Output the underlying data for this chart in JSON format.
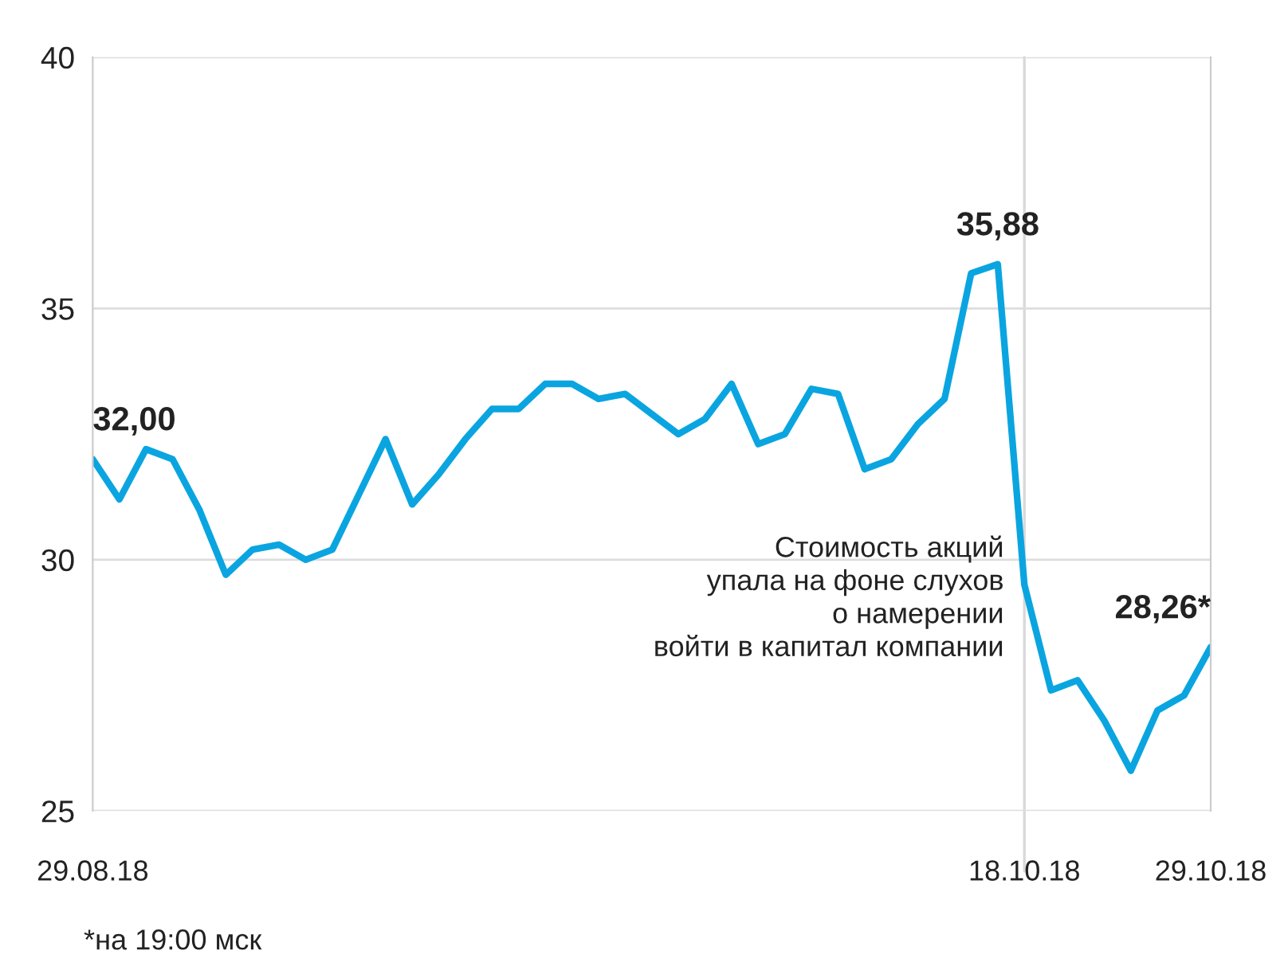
{
  "chart_data": {
    "type": "line",
    "categories": [
      "29.08.18",
      null,
      null,
      null,
      null,
      null,
      null,
      null,
      null,
      null,
      null,
      null,
      null,
      null,
      null,
      null,
      null,
      null,
      null,
      null,
      null,
      null,
      null,
      null,
      null,
      null,
      null,
      null,
      null,
      null,
      null,
      null,
      null,
      null,
      null,
      "18.10.18",
      null,
      null,
      null,
      null,
      null,
      null,
      "29.10.18"
    ],
    "series": [
      {
        "color": "#0aa5e0",
        "values": [
          32.0,
          31.2,
          32.2,
          32.0,
          31.0,
          29.7,
          30.2,
          30.3,
          30.0,
          30.2,
          31.3,
          32.4,
          31.1,
          31.7,
          32.4,
          33.0,
          33.0,
          33.5,
          33.5,
          33.2,
          33.3,
          32.9,
          32.5,
          32.8,
          33.5,
          32.3,
          32.5,
          33.4,
          33.3,
          31.8,
          32.0,
          32.7,
          33.2,
          35.7,
          35.88,
          29.5,
          27.4,
          27.6,
          26.8,
          25.8,
          27.0,
          27.3,
          28.26
        ],
        "value_labels": [
          "32,00",
          null,
          null,
          null,
          null,
          null,
          null,
          null,
          null,
          null,
          null,
          null,
          null,
          null,
          null,
          null,
          null,
          null,
          null,
          null,
          null,
          null,
          null,
          null,
          null,
          null,
          null,
          null,
          null,
          null,
          null,
          null,
          null,
          null,
          "35,88",
          null,
          null,
          null,
          null,
          null,
          null,
          null,
          "28,26*"
        ]
      }
    ],
    "ylim": [
      25,
      40
    ],
    "yticks": [
      25,
      30,
      35,
      40
    ],
    "grid": "y",
    "legend": false,
    "marker": "none",
    "line_style": "solid",
    "ref_lines": [
      {
        "axis": "x",
        "value": "18.10.18",
        "color": "#d9d9d9"
      }
    ],
    "annotations": [
      "Стоимость акций\nупала на фоне слухов\nо намерении\nвойти в капитал компании",
      "*на 19:00 мск"
    ]
  }
}
